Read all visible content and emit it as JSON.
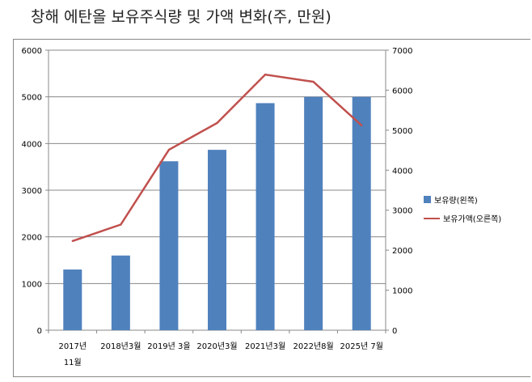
{
  "chart_data": {
    "type": "bar+line",
    "title": "창해 에탄올 보유주식량 및 가액 변화(주, 만원)",
    "categories": [
      "2017년 11월",
      "2018년3월",
      "2019년 3을",
      "2020년3월",
      "2021년3월",
      "2022년8월",
      "2025년 7월"
    ],
    "series": [
      {
        "name": "보유량(왼쪽)",
        "type": "bar",
        "axis": "left",
        "color": "#4f81bd",
        "values": [
          1300,
          1600,
          3620,
          3865,
          4865,
          5000,
          5000
        ]
      },
      {
        "name": "보유가액(오른쪽)",
        "type": "line",
        "axis": "right",
        "color": "#c0504d",
        "values": [
          2230,
          2640,
          4510,
          5180,
          6390,
          6210,
          5120
        ]
      }
    ],
    "left_axis": {
      "ylim": [
        0,
        6000
      ],
      "ticks": [
        0,
        1000,
        2000,
        3000,
        4000,
        5000,
        6000
      ]
    },
    "right_axis": {
      "ylim": [
        0,
        7000
      ],
      "ticks": [
        0,
        1000,
        2000,
        3000,
        4000,
        5000,
        6000,
        7000
      ]
    },
    "grid": true,
    "legend": "right"
  }
}
